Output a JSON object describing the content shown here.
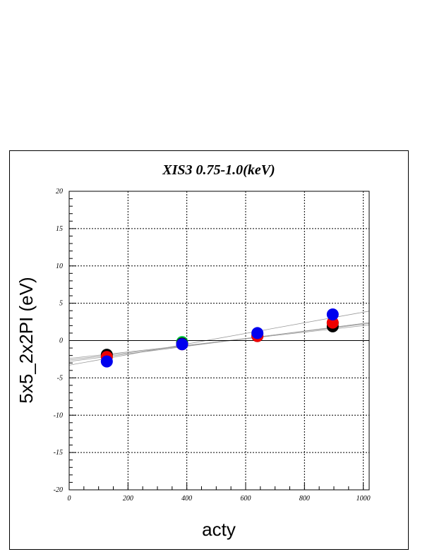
{
  "chart_data": {
    "type": "scatter",
    "title": "XIS3 0.75-1.0(keV)",
    "xlabel": "acty",
    "ylabel": "5x5_2x2PI (eV)",
    "xlim": [
      0,
      1020
    ],
    "ylim": [
      -20,
      20
    ],
    "xticks": [
      0,
      200,
      400,
      600,
      800,
      1000
    ],
    "yticks": [
      -20,
      -15,
      -10,
      -5,
      0,
      5,
      10,
      15,
      20
    ],
    "grid": true,
    "series": [
      {
        "color": "#00cc44",
        "x": [
          128,
          384,
          640,
          896
        ],
        "y": [
          -2.1,
          -0.2,
          0.9,
          2.3
        ],
        "fit": [
          -2.8,
          0.0051
        ]
      },
      {
        "color": "#000000",
        "x": [
          128,
          384,
          640,
          896
        ],
        "y": [
          -1.9,
          -0.4,
          0.6,
          1.9
        ],
        "fit": [
          -2.4,
          0.0044
        ]
      },
      {
        "color": "#ee0000",
        "x": [
          128,
          384,
          640,
          896
        ],
        "y": [
          -2.2,
          -0.5,
          0.6,
          2.4
        ],
        "fit": [
          -2.6,
          0.0048
        ]
      },
      {
        "color": "#0000ee",
        "x": [
          128,
          384,
          640,
          896
        ],
        "y": [
          -2.8,
          -0.5,
          1.0,
          3.5
        ],
        "fit": [
          -3.3,
          0.0071
        ]
      }
    ]
  }
}
